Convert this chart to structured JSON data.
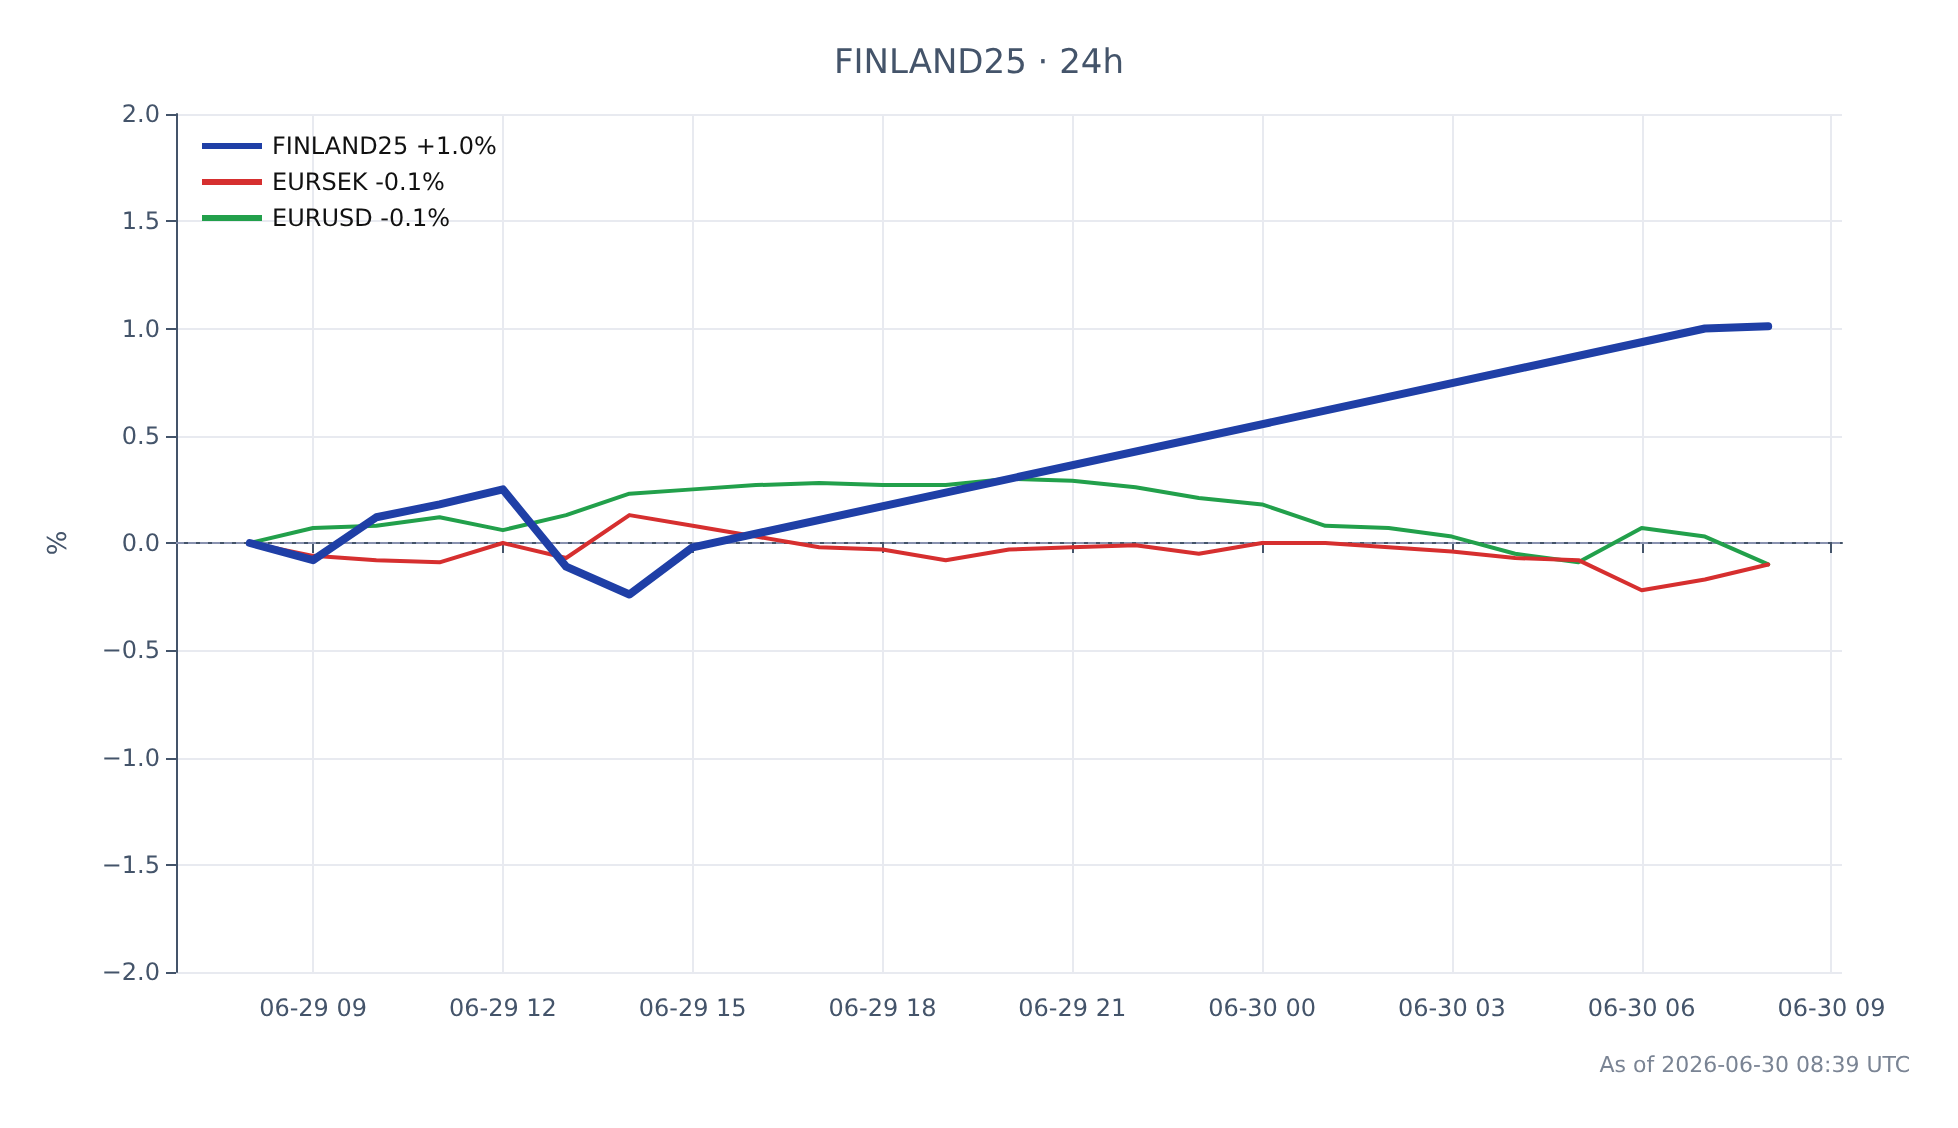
{
  "chart_data": {
    "type": "line",
    "title": "FINLAND25 · 24h",
    "ylabel": "%",
    "annotations": [
      "As of 2026-06-30 08:39 UTC"
    ],
    "xlim": [
      "2026-06-29T06:50",
      "2026-06-30T09:10"
    ],
    "xticks": [
      {
        "value": "2026-06-29T09:00",
        "label": "06-29 09"
      },
      {
        "value": "2026-06-29T12:00",
        "label": "06-29 12"
      },
      {
        "value": "2026-06-29T15:00",
        "label": "06-29 15"
      },
      {
        "value": "2026-06-29T18:00",
        "label": "06-29 18"
      },
      {
        "value": "2026-06-29T21:00",
        "label": "06-29 21"
      },
      {
        "value": "2026-06-30T00:00",
        "label": "06-30 00"
      },
      {
        "value": "2026-06-30T03:00",
        "label": "06-30 03"
      },
      {
        "value": "2026-06-30T06:00",
        "label": "06-30 06"
      },
      {
        "value": "2026-06-30T09:00",
        "label": "06-30 09"
      }
    ],
    "ylim": [
      -2,
      2
    ],
    "yticks": [
      {
        "value": -2,
        "label": "−2.0"
      },
      {
        "value": -1.5,
        "label": "−1.5"
      },
      {
        "value": -1,
        "label": "−1.0"
      },
      {
        "value": -0.5,
        "label": "−0.5"
      },
      {
        "value": 0,
        "label": "0.0"
      },
      {
        "value": 0.5,
        "label": "0.5"
      },
      {
        "value": 1,
        "label": "1.0"
      },
      {
        "value": 1.5,
        "label": "1.5"
      },
      {
        "value": 2,
        "label": "2.0"
      }
    ],
    "x": [
      "2026-06-29T08:00",
      "2026-06-29T09:00",
      "2026-06-29T10:00",
      "2026-06-29T11:00",
      "2026-06-29T12:00",
      "2026-06-29T13:00",
      "2026-06-29T14:00",
      "2026-06-29T15:00",
      "2026-06-29T16:00",
      "2026-06-29T17:00",
      "2026-06-29T18:00",
      "2026-06-29T19:00",
      "2026-06-29T20:00",
      "2026-06-29T21:00",
      "2026-06-29T22:00",
      "2026-06-29T23:00",
      "2026-06-30T00:00",
      "2026-06-30T01:00",
      "2026-06-30T02:00",
      "2026-06-30T03:00",
      "2026-06-30T04:00",
      "2026-06-30T05:00",
      "2026-06-30T06:00",
      "2026-06-30T07:00",
      "2026-06-30T08:00"
    ],
    "series": [
      {
        "name": "FINLAND25 +1.0%",
        "color": "#1f3fa6",
        "x": [
          "2026-06-29T08:00",
          "2026-06-29T09:00",
          "2026-06-29T10:00",
          "2026-06-29T11:00",
          "2026-06-29T12:00",
          "2026-06-29T13:00",
          "2026-06-29T14:00",
          "2026-06-29T15:00",
          "2026-06-30T07:00",
          "2026-06-30T08:00"
        ],
        "values": [
          0,
          -0.08,
          0.12,
          0.18,
          0.25,
          -0.11,
          -0.24,
          -0.02,
          1.0,
          1.01
        ]
      },
      {
        "name": "EURSEK -0.1%",
        "color": "#d62f2f",
        "values": [
          0,
          -0.06,
          -0.08,
          -0.09,
          0,
          -0.07,
          0.13,
          0.08,
          0.03,
          -0.02,
          -0.03,
          -0.08,
          -0.03,
          -0.02,
          -0.01,
          -0.05,
          0,
          0,
          -0.02,
          -0.04,
          -0.07,
          -0.08,
          -0.22,
          -0.17,
          -0.1
        ]
      },
      {
        "name": "EURUSD -0.1%",
        "color": "#22a04b",
        "values": [
          0,
          0.07,
          0.08,
          0.12,
          0.06,
          0.13,
          0.23,
          0.25,
          0.27,
          0.28,
          0.27,
          0.27,
          0.3,
          0.29,
          0.26,
          0.21,
          0.18,
          0.08,
          0.07,
          0.03,
          -0.05,
          -0.09,
          0.07,
          0.03,
          -0.1
        ]
      }
    ],
    "ref_lines": [
      {
        "axis": "y",
        "value": 0,
        "color": "#8a93b0",
        "line_style": "dashed"
      }
    ],
    "grid": true,
    "legend": "top left",
    "marker": "none",
    "line_style": "solid"
  }
}
